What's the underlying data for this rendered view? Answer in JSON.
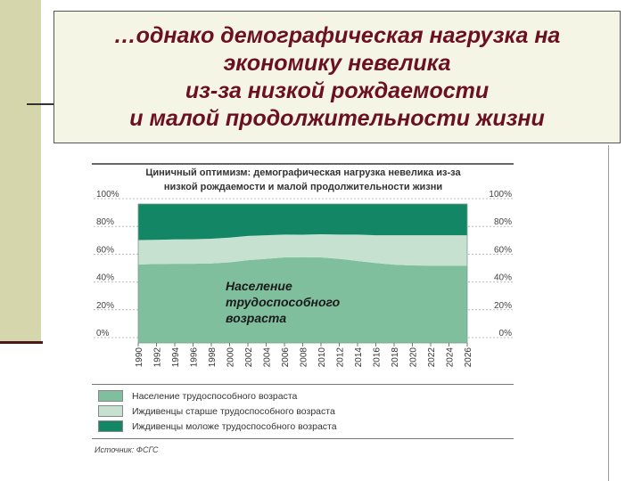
{
  "slide": {
    "title_lines": [
      "…однако демографическая нагрузка на",
      "экономику невелика",
      "из-за низкой рождаемости",
      "и малой продолжительности жизни"
    ]
  },
  "figure": {
    "title_lines": [
      "Циничный оптимизм: демографическая нагрузка невелика из-за",
      "низкой рождаемости и малой продолжительности жизни"
    ],
    "source": "Источник: ФСГС"
  },
  "chart_data": {
    "type": "area",
    "stacked": true,
    "x": [
      1990,
      1992,
      1994,
      1996,
      1998,
      2000,
      2002,
      2004,
      2006,
      2008,
      2010,
      2012,
      2014,
      2016,
      2018,
      2020,
      2022,
      2024,
      2026
    ],
    "series": [
      {
        "name": "Население трудоспособного возраста",
        "color": "#7fbf9e",
        "values": [
          56.5,
          56.8,
          57.0,
          57.0,
          57.2,
          58.0,
          59.5,
          60.5,
          61.5,
          61.7,
          61.5,
          60.5,
          59.0,
          57.5,
          56.3,
          55.8,
          55.6,
          55.6,
          55.6
        ]
      },
      {
        "name": "Иждивенцы старше трудоспособного возраста",
        "color": "#c6e1cf",
        "values": [
          17.5,
          17.4,
          17.5,
          17.6,
          17.8,
          17.8,
          17.5,
          17.0,
          16.5,
          16.2,
          16.7,
          17.5,
          19.0,
          20.0,
          21.2,
          21.7,
          21.9,
          21.9,
          21.9
        ]
      },
      {
        "name": "Иждивенцы моложе трудоспособного возраста",
        "color": "#138765",
        "values": [
          26.0,
          25.8,
          25.5,
          25.4,
          25.0,
          24.2,
          23.0,
          22.5,
          22.0,
          22.1,
          21.8,
          22.0,
          22.0,
          22.5,
          22.5,
          22.5,
          22.5,
          22.5,
          22.5
        ]
      }
    ],
    "ylim": [
      0,
      100
    ],
    "y_tick_labels": [
      "0%",
      "20%",
      "40%",
      "60%",
      "80%",
      "100%"
    ],
    "annotation": [
      "Население",
      "трудоспособного",
      "возраста"
    ],
    "legend_position": "bottom"
  }
}
